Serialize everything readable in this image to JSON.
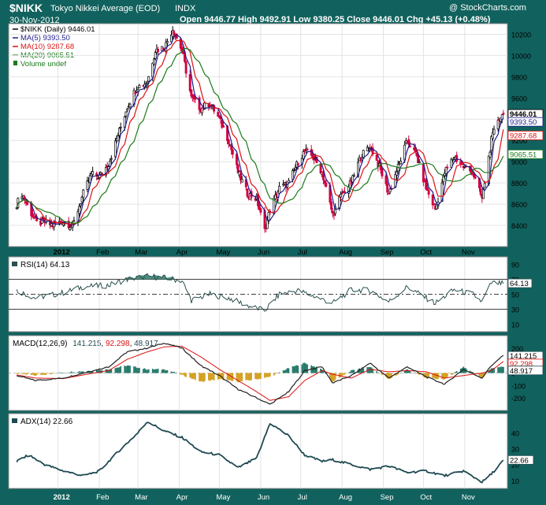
{
  "header": {
    "symbol": "$NIKK",
    "name": "Tokyo Nikkei Average (EOD)",
    "exchange": "INDX",
    "date": "30-Nov-2012",
    "watermark": "@ StockCharts.com",
    "quote": "Open 9446.77  High 9492.91  Low 9380.25  Close 9446.01  Chg +45.13 (+0.48%)"
  },
  "colors": {
    "frame": "#11625e",
    "panel_bg": "#ffffff",
    "price_up": "#000000",
    "price_down": "#d00040",
    "ma5": "#1c1c8c",
    "ma10": "#dd1111",
    "ma20": "#1a7a1a",
    "rsi_line": "#2b4f4f",
    "rsi_fill": "#2e7a6a",
    "macd_line": "#222222",
    "macd_signal": "#dd1111",
    "hist_pos": "#267a6a",
    "hist_neg": "#d4a020",
    "adx_line": "#1f4a52"
  },
  "chart_data": [
    {
      "type": "candlestick",
      "panel": "price",
      "title": "$NIKK (Daily) 9446.01",
      "legend": [
        {
          "key": "nikk",
          "label": "$NIKK (Daily) 9446.01",
          "color": "#000000"
        },
        {
          "key": "ma5",
          "label": "MA(5) 9393.50",
          "color": "#1c1c8c"
        },
        {
          "key": "ma10",
          "label": "MA(10) 9287.68",
          "color": "#dd1111"
        },
        {
          "key": "ma20",
          "label": "MA(20) 9065.51",
          "color": "#1a7a1a"
        },
        {
          "key": "vol",
          "label": "Volume undef",
          "color": "#1a7a1a"
        }
      ],
      "ylim": [
        8200,
        10300
      ],
      "y_ticks": [
        8400,
        8600,
        8800,
        9000,
        9200,
        9400,
        9600,
        9800,
        10000,
        10200
      ],
      "value_labels": [
        "9446.01",
        "9393.50",
        "9287.68",
        "9065.51"
      ],
      "close_anchors": [
        [
          "2011-12-01",
          8600
        ],
        [
          "2011-12-05",
          8700
        ],
        [
          "2011-12-10",
          8560
        ],
        [
          "2011-12-16",
          8420
        ],
        [
          "2011-12-22",
          8430
        ],
        [
          "2011-12-28",
          8400
        ],
        [
          "2012-01-05",
          8440
        ],
        [
          "2012-01-12",
          8390
        ],
        [
          "2012-01-20",
          8700
        ],
        [
          "2012-01-26",
          8880
        ],
        [
          "2012-02-01",
          8860
        ],
        [
          "2012-02-08",
          8980
        ],
        [
          "2012-02-15",
          9250
        ],
        [
          "2012-02-22",
          9520
        ],
        [
          "2012-02-29",
          9700
        ],
        [
          "2012-03-08",
          9750
        ],
        [
          "2012-03-14",
          10050
        ],
        [
          "2012-03-21",
          10080
        ],
        [
          "2012-03-27",
          10250
        ],
        [
          "2012-04-03",
          10050
        ],
        [
          "2012-04-10",
          9600
        ],
        [
          "2012-04-17",
          9500
        ],
        [
          "2012-04-24",
          9550
        ],
        [
          "2012-05-01",
          9400
        ],
        [
          "2012-05-08",
          9200
        ],
        [
          "2012-05-15",
          8900
        ],
        [
          "2012-05-22",
          8700
        ],
        [
          "2012-05-29",
          8650
        ],
        [
          "2012-06-04",
          8350
        ],
        [
          "2012-06-08",
          8550
        ],
        [
          "2012-06-15",
          8750
        ],
        [
          "2012-06-22",
          8800
        ],
        [
          "2012-06-29",
          9000
        ],
        [
          "2012-07-04",
          9100
        ],
        [
          "2012-07-10",
          9050
        ],
        [
          "2012-07-17",
          8900
        ],
        [
          "2012-07-25",
          8500
        ],
        [
          "2012-08-01",
          8700
        ],
        [
          "2012-08-08",
          8800
        ],
        [
          "2012-08-15",
          9050
        ],
        [
          "2012-08-22",
          9150
        ],
        [
          "2012-08-29",
          8950
        ],
        [
          "2012-09-05",
          8700
        ],
        [
          "2012-09-12",
          8950
        ],
        [
          "2012-09-19",
          9200
        ],
        [
          "2012-09-26",
          9050
        ],
        [
          "2012-10-03",
          8750
        ],
        [
          "2012-10-10",
          8550
        ],
        [
          "2012-10-17",
          8900
        ],
        [
          "2012-10-24",
          9050
        ],
        [
          "2012-10-31",
          8950
        ],
        [
          "2012-11-07",
          8900
        ],
        [
          "2012-11-14",
          8650
        ],
        [
          "2012-11-21",
          9200
        ],
        [
          "2012-11-26",
          9400
        ],
        [
          "2012-11-30",
          9446
        ]
      ]
    },
    {
      "type": "line",
      "panel": "rsi",
      "title": "RSI(14) 64.13",
      "ylim": [
        0,
        100
      ],
      "y_ticks": [
        10,
        30,
        50,
        70,
        90
      ],
      "value_labels": [
        "64.13"
      ],
      "anchors": [
        [
          "2011-12-01",
          55
        ],
        [
          "2011-12-15",
          45
        ],
        [
          "2012-01-05",
          52
        ],
        [
          "2012-01-20",
          60
        ],
        [
          "2012-02-08",
          62
        ],
        [
          "2012-02-22",
          70
        ],
        [
          "2012-03-08",
          74
        ],
        [
          "2012-03-21",
          72
        ],
        [
          "2012-04-03",
          68
        ],
        [
          "2012-04-10",
          42
        ],
        [
          "2012-04-24",
          50
        ],
        [
          "2012-05-08",
          45
        ],
        [
          "2012-05-22",
          35
        ],
        [
          "2012-06-04",
          28
        ],
        [
          "2012-06-15",
          50
        ],
        [
          "2012-06-29",
          55
        ],
        [
          "2012-07-10",
          48
        ],
        [
          "2012-07-25",
          38
        ],
        [
          "2012-08-08",
          56
        ],
        [
          "2012-08-22",
          55
        ],
        [
          "2012-09-05",
          40
        ],
        [
          "2012-09-19",
          60
        ],
        [
          "2012-10-03",
          45
        ],
        [
          "2012-10-10",
          38
        ],
        [
          "2012-10-24",
          56
        ],
        [
          "2012-11-07",
          50
        ],
        [
          "2012-11-14",
          40
        ],
        [
          "2012-11-21",
          65
        ],
        [
          "2012-11-30",
          64.13
        ]
      ]
    },
    {
      "type": "line",
      "panel": "macd",
      "title": "MACD(12,26,9) 141.215, 92.298, 48.917",
      "legend": [
        {
          "key": "macd",
          "label": "MACD(12,26,9)",
          "color": "#222222"
        },
        {
          "key": "signal",
          "label": "92.298",
          "color": "#dd1111"
        },
        {
          "key": "hist",
          "label": "48.917",
          "color": "#267a6a"
        }
      ],
      "values_text": "141.215",
      "ylim": [
        -300,
        300
      ],
      "y_ticks": [
        -200,
        -100,
        0,
        100,
        200
      ],
      "value_labels": [
        "141.215",
        "92.298",
        "48.917"
      ],
      "macd_anchors": [
        [
          "2011-12-01",
          -20
        ],
        [
          "2011-12-15",
          -60
        ],
        [
          "2012-01-05",
          -40
        ],
        [
          "2012-01-20",
          0
        ],
        [
          "2012-02-08",
          50
        ],
        [
          "2012-02-22",
          170
        ],
        [
          "2012-03-08",
          200
        ],
        [
          "2012-03-21",
          240
        ],
        [
          "2012-04-03",
          200
        ],
        [
          "2012-04-17",
          60
        ],
        [
          "2012-05-01",
          -20
        ],
        [
          "2012-05-15",
          -130
        ],
        [
          "2012-05-29",
          -200
        ],
        [
          "2012-06-08",
          -250
        ],
        [
          "2012-06-22",
          -150
        ],
        [
          "2012-07-04",
          20
        ],
        [
          "2012-07-17",
          50
        ],
        [
          "2012-07-25",
          -80
        ],
        [
          "2012-08-08",
          -20
        ],
        [
          "2012-08-22",
          80
        ],
        [
          "2012-09-05",
          -40
        ],
        [
          "2012-09-19",
          50
        ],
        [
          "2012-10-03",
          -30
        ],
        [
          "2012-10-17",
          -90
        ],
        [
          "2012-10-31",
          30
        ],
        [
          "2012-11-14",
          -40
        ],
        [
          "2012-11-21",
          60
        ],
        [
          "2012-11-30",
          141.215
        ]
      ],
      "signal_anchors": [
        [
          "2011-12-01",
          -15
        ],
        [
          "2011-12-15",
          -40
        ],
        [
          "2012-01-05",
          -45
        ],
        [
          "2012-01-20",
          -15
        ],
        [
          "2012-02-08",
          20
        ],
        [
          "2012-02-22",
          110
        ],
        [
          "2012-03-08",
          170
        ],
        [
          "2012-03-21",
          210
        ],
        [
          "2012-04-03",
          215
        ],
        [
          "2012-04-17",
          130
        ],
        [
          "2012-05-01",
          30
        ],
        [
          "2012-05-15",
          -60
        ],
        [
          "2012-05-29",
          -150
        ],
        [
          "2012-06-08",
          -220
        ],
        [
          "2012-06-22",
          -190
        ],
        [
          "2012-07-04",
          -60
        ],
        [
          "2012-07-17",
          20
        ],
        [
          "2012-07-25",
          -10
        ],
        [
          "2012-08-08",
          -40
        ],
        [
          "2012-08-22",
          30
        ],
        [
          "2012-09-05",
          10
        ],
        [
          "2012-09-19",
          20
        ],
        [
          "2012-10-03",
          10
        ],
        [
          "2012-10-17",
          -40
        ],
        [
          "2012-10-31",
          -20
        ],
        [
          "2012-11-14",
          0
        ],
        [
          "2012-11-21",
          20
        ],
        [
          "2012-11-30",
          92.298
        ]
      ]
    },
    {
      "type": "line",
      "panel": "adx",
      "title": "ADX(14) 22.66",
      "ylim": [
        5,
        52
      ],
      "y_ticks": [
        10,
        20,
        30,
        40
      ],
      "value_labels": [
        "22.66"
      ],
      "anchors": [
        [
          "2011-12-01",
          22
        ],
        [
          "2011-12-10",
          26
        ],
        [
          "2011-12-22",
          20
        ],
        [
          "2012-01-05",
          16
        ],
        [
          "2012-01-20",
          13
        ],
        [
          "2012-02-01",
          16
        ],
        [
          "2012-02-15",
          28
        ],
        [
          "2012-03-01",
          40
        ],
        [
          "2012-03-08",
          47
        ],
        [
          "2012-03-21",
          41
        ],
        [
          "2012-04-03",
          37
        ],
        [
          "2012-04-17",
          28
        ],
        [
          "2012-05-01",
          26
        ],
        [
          "2012-05-15",
          18
        ],
        [
          "2012-05-29",
          24
        ],
        [
          "2012-06-08",
          46
        ],
        [
          "2012-06-22",
          38
        ],
        [
          "2012-07-04",
          26
        ],
        [
          "2012-07-17",
          22
        ],
        [
          "2012-07-25",
          23
        ],
        [
          "2012-08-08",
          20
        ],
        [
          "2012-08-22",
          17
        ],
        [
          "2012-09-05",
          19
        ],
        [
          "2012-09-19",
          15
        ],
        [
          "2012-10-03",
          16
        ],
        [
          "2012-10-17",
          13
        ],
        [
          "2012-10-31",
          16
        ],
        [
          "2012-11-14",
          9
        ],
        [
          "2012-11-21",
          14
        ],
        [
          "2012-11-30",
          22.66
        ]
      ]
    }
  ],
  "x_axis": {
    "start": "2011-11-25",
    "end": "2012-12-03",
    "tick_dates": [
      "2012-01-01",
      "2012-02-01",
      "2012-03-01",
      "2012-04-01",
      "2012-05-01",
      "2012-06-01",
      "2012-07-01",
      "2012-08-01",
      "2012-09-01",
      "2012-10-01",
      "2012-11-01"
    ],
    "tick_labels": [
      "2012",
      "Feb",
      "Mar",
      "Apr",
      "May",
      "Jun",
      "Jul",
      "Aug",
      "Sep",
      "Oct",
      "Nov"
    ]
  }
}
